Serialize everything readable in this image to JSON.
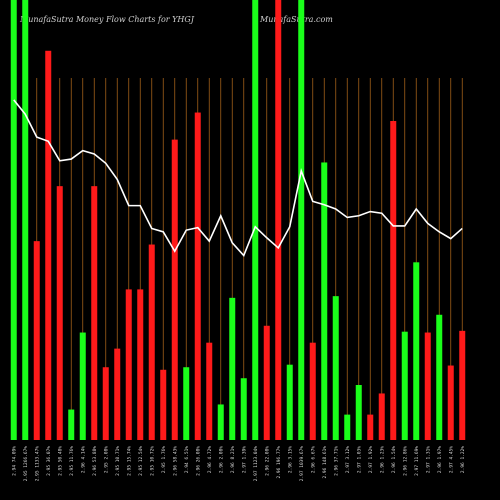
{
  "header": {
    "title": "MunafaSutra  Money Flow  Charts for YHGJ",
    "site": "MunafaSutra.com"
  },
  "chart_data": {
    "type": "bar",
    "title": "MunafaSutra  Money Flow  Charts for YHGJ",
    "series": [
      {
        "kind": "bar",
        "values": [
          520,
          520,
          235,
          460,
          300,
          36,
          127,
          300,
          86,
          108,
          178,
          178,
          231,
          83,
          355,
          86,
          387,
          115,
          42,
          168,
          73,
          520,
          135,
          520,
          89,
          520,
          115,
          328,
          170,
          30,
          65,
          30,
          55,
          377,
          128,
          210,
          127,
          148,
          88,
          129
        ],
        "colors": [
          "green",
          "green",
          "red",
          "red",
          "red",
          "green",
          "green",
          "red",
          "red",
          "red",
          "red",
          "red",
          "red",
          "red",
          "red",
          "green",
          "red",
          "red",
          "green",
          "green",
          "green",
          "green",
          "red",
          "red",
          "green",
          "green",
          "red",
          "green",
          "green",
          "green",
          "green",
          "red",
          "red",
          "red",
          "green",
          "green",
          "red",
          "green",
          "red",
          "red"
        ]
      },
      {
        "kind": "line",
        "values": [
          402,
          385,
          358,
          353,
          330,
          332,
          342,
          338,
          327,
          308,
          277,
          277,
          250,
          246,
          223,
          248,
          251,
          235,
          265,
          233,
          218,
          252,
          239,
          227,
          252,
          318,
          282,
          278,
          273,
          263,
          265,
          270,
          268,
          253,
          253,
          273,
          256,
          246,
          238,
          250
        ]
      }
    ],
    "categories": [
      "2.94 74.09%",
      "2.95 1266.67%",
      "2.95 1133.47%",
      "2.95 36.07%",
      "2.95 50.48%",
      "2.95 11.76%",
      "2.96 4.14%",
      "2.96 53.88%",
      "2.95 2.08%",
      "2.95 10.71%",
      "2.95 15.74%",
      "2.95 12.54%",
      "2.95 10.72%",
      "2.95 1.76%",
      "2.96 58.43%",
      "2.94 6.51%",
      "2.96 26.08%",
      "2.96 4.72%",
      "2.96 2.08%",
      "2.96 8.21%",
      "2.97 1.39%",
      "2.97 1123.04%",
      "2.96 22.08%",
      "2.96 196.77%",
      "2.96 3.15%",
      "2.97 1039.67%",
      "2.96 6.67%",
      "2.96 148.61%",
      "2.96 37.71%",
      "2.97 3.12%",
      "2.97 1.03%",
      "2.97 1.92%",
      "2.96 1.23%",
      "2.96 1.54%",
      "2.96 12.86%",
      "2.97 11.69%",
      "2.97 1.31%",
      "2.96 1.97%",
      "2.97 4.45%",
      "2.96 1.22%"
    ],
    "ylim": [
      0,
      520
    ],
    "grid": "vertical"
  }
}
